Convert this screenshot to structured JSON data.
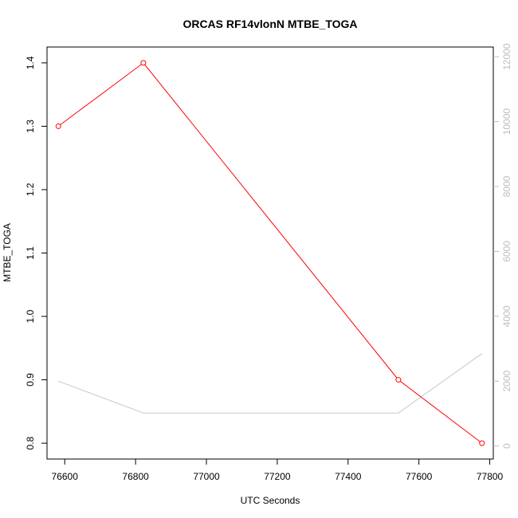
{
  "chart_data": {
    "type": "line",
    "title": "ORCAS RF14vlonN MTBE_TOGA",
    "xlabel": "UTC Seconds",
    "ylabel": "MTBE_TOGA",
    "xlim": [
      76550,
      77810
    ],
    "ylim": [
      0.775,
      1.425
    ],
    "y2lim": [
      -400,
      12300
    ],
    "grid": false,
    "x_ticks": [
      76600,
      76800,
      77000,
      77200,
      77400,
      77600,
      77800
    ],
    "x_tick_labels": [
      "76600",
      "76800",
      "77000",
      "77200",
      "77400",
      "77600",
      "77800"
    ],
    "y_ticks": [
      0.8,
      0.9,
      1.0,
      1.1,
      1.2,
      1.3,
      1.4
    ],
    "y_tick_labels": [
      "0.8",
      "0.9",
      "1.0",
      "1.1",
      "1.2",
      "1.3",
      "1.4"
    ],
    "y2_ticks": [
      0,
      2000,
      4000,
      6000,
      8000,
      10000,
      12000
    ],
    "y2_tick_labels": [
      "0",
      "2000",
      "4000",
      "6000",
      "8000",
      "10000",
      "12000"
    ],
    "series": [
      {
        "axis": "left",
        "color": "#ff0000",
        "marker": "circle",
        "x": [
          76582,
          76822,
          77542,
          77778
        ],
        "y": [
          1.3,
          1.4,
          0.9,
          0.8
        ]
      },
      {
        "axis": "right",
        "color": "#c8c8c8",
        "marker": "none",
        "x": [
          76582,
          76822,
          77542,
          77778
        ],
        "y": [
          2000,
          1020,
          1020,
          2850
        ]
      }
    ]
  }
}
